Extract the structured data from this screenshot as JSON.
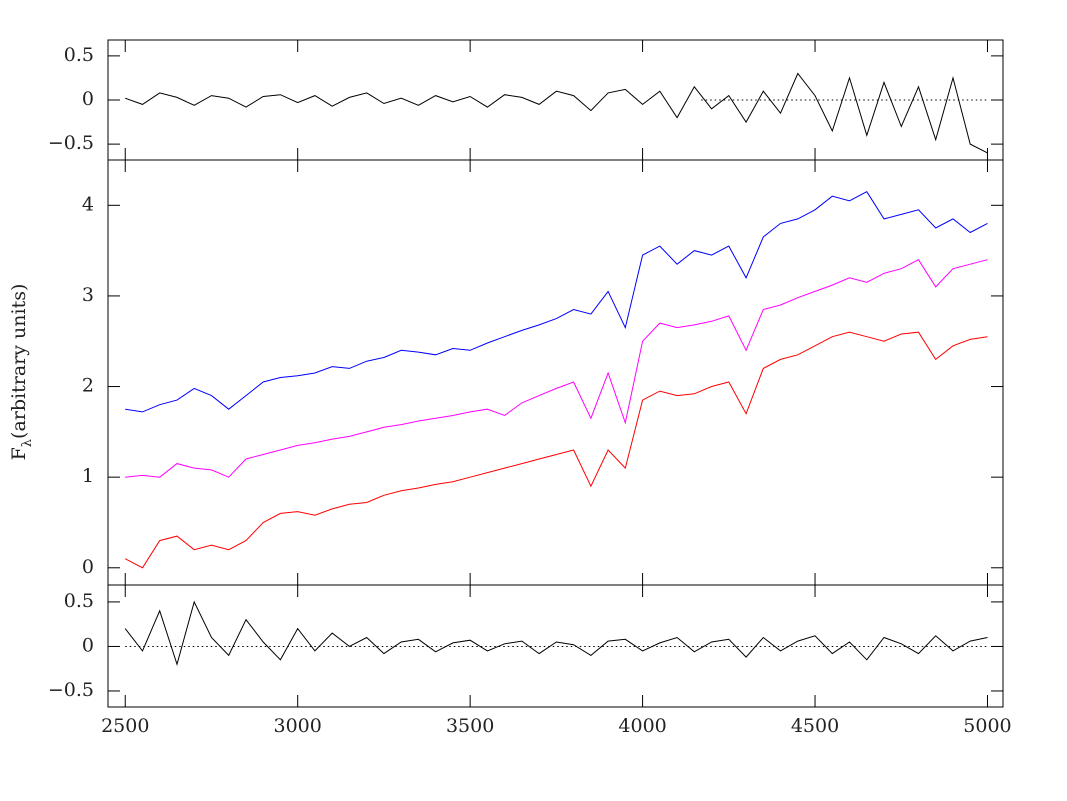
{
  "chart_data": [
    {
      "type": "line",
      "xlim": [
        2450,
        5045
      ],
      "ylim": [
        -0.68,
        0.68
      ],
      "yticks": [
        {
          "value": -0.5,
          "label": "−0.5"
        },
        0,
        0.5
      ],
      "hline": {
        "y": 0,
        "x": [
          4170,
          5000
        ]
      },
      "x": [
        2500,
        2550,
        2600,
        2650,
        2700,
        2750,
        2800,
        2850,
        2900,
        2950,
        3000,
        3050,
        3100,
        3150,
        3200,
        3250,
        3300,
        3350,
        3400,
        3450,
        3500,
        3550,
        3600,
        3650,
        3700,
        3750,
        3800,
        3850,
        3900,
        3950,
        4000,
        4050,
        4100,
        4150,
        4200,
        4250,
        4300,
        4350,
        4400,
        4450,
        4500,
        4550,
        4600,
        4650,
        4700,
        4750,
        4800,
        4850,
        4900,
        4950,
        5000
      ],
      "series": [
        {
          "color": "#000000",
          "values": [
            0.02,
            -0.05,
            0.08,
            0.03,
            -0.06,
            0.05,
            0.02,
            -0.08,
            0.04,
            0.06,
            -0.03,
            0.05,
            -0.07,
            0.03,
            0.08,
            -0.04,
            0.02,
            -0.06,
            0.05,
            -0.02,
            0.04,
            -0.08,
            0.06,
            0.03,
            -0.05,
            0.1,
            0.05,
            -0.12,
            0.08,
            0.12,
            -0.05,
            0.1,
            -0.2,
            0.15,
            -0.1,
            0.05,
            -0.25,
            0.1,
            -0.15,
            0.3,
            0.05,
            -0.35,
            0.25,
            -0.4,
            0.2,
            -0.3,
            0.15,
            -0.45,
            0.25,
            -0.5,
            -0.6
          ]
        }
      ]
    },
    {
      "type": "line",
      "xlim": [
        2450,
        5045
      ],
      "ylim": [
        -0.19,
        4.5
      ],
      "yticks": [
        0,
        1,
        2,
        3,
        4
      ],
      "ylabel": {
        "base": "F",
        "sub": "λ",
        "rest": "(arbitrary units)"
      },
      "x": [
        2500,
        2550,
        2600,
        2650,
        2700,
        2750,
        2800,
        2850,
        2900,
        2950,
        3000,
        3050,
        3100,
        3150,
        3200,
        3250,
        3300,
        3350,
        3400,
        3450,
        3500,
        3550,
        3600,
        3650,
        3700,
        3750,
        3800,
        3850,
        3900,
        3950,
        4000,
        4050,
        4100,
        4150,
        4200,
        4250,
        4300,
        4350,
        4400,
        4450,
        4500,
        4550,
        4600,
        4650,
        4700,
        4750,
        4800,
        4850,
        4900,
        4950,
        5000
      ],
      "series": [
        {
          "color": "#0000ff",
          "values": [
            1.75,
            1.72,
            1.8,
            1.85,
            1.98,
            1.9,
            1.75,
            1.9,
            2.05,
            2.1,
            2.12,
            2.15,
            2.22,
            2.2,
            2.28,
            2.32,
            2.4,
            2.38,
            2.35,
            2.42,
            2.4,
            2.48,
            2.55,
            2.62,
            2.68,
            2.75,
            2.85,
            2.8,
            3.05,
            2.65,
            3.45,
            3.55,
            3.35,
            3.5,
            3.45,
            3.55,
            3.2,
            3.65,
            3.8,
            3.85,
            3.95,
            4.1,
            4.05,
            4.15,
            3.85,
            3.9,
            3.95,
            3.75,
            3.85,
            3.7,
            3.8
          ]
        },
        {
          "color": "#ff00ff",
          "values": [
            1.0,
            1.02,
            1.0,
            1.15,
            1.1,
            1.08,
            1.0,
            1.2,
            1.25,
            1.3,
            1.35,
            1.38,
            1.42,
            1.45,
            1.5,
            1.55,
            1.58,
            1.62,
            1.65,
            1.68,
            1.72,
            1.75,
            1.68,
            1.82,
            1.9,
            1.98,
            2.05,
            1.65,
            2.15,
            1.6,
            2.5,
            2.7,
            2.65,
            2.68,
            2.72,
            2.78,
            2.4,
            2.85,
            2.9,
            2.98,
            3.05,
            3.12,
            3.2,
            3.15,
            3.25,
            3.3,
            3.4,
            3.1,
            3.3,
            3.35,
            3.4
          ]
        },
        {
          "color": "#ff0000",
          "values": [
            0.1,
            0.0,
            0.3,
            0.35,
            0.2,
            0.25,
            0.2,
            0.3,
            0.5,
            0.6,
            0.62,
            0.58,
            0.65,
            0.7,
            0.72,
            0.8,
            0.85,
            0.88,
            0.92,
            0.95,
            1.0,
            1.05,
            1.1,
            1.15,
            1.2,
            1.25,
            1.3,
            0.9,
            1.3,
            1.1,
            1.85,
            1.95,
            1.9,
            1.92,
            2.0,
            2.05,
            1.7,
            2.2,
            2.3,
            2.35,
            2.45,
            2.55,
            2.6,
            2.55,
            2.5,
            2.58,
            2.6,
            2.3,
            2.45,
            2.52,
            2.55
          ]
        }
      ]
    },
    {
      "type": "line",
      "xlim": [
        2450,
        5045
      ],
      "ylim": [
        -0.68,
        0.69
      ],
      "yticks": [
        {
          "value": -0.5,
          "label": "−0.5"
        },
        0,
        0.5
      ],
      "xticks": [
        2500,
        3000,
        3500,
        4000,
        4500,
        5000
      ],
      "hline": {
        "y": 0,
        "x": [
          2500,
          5000
        ]
      },
      "x": [
        2500,
        2550,
        2600,
        2650,
        2700,
        2750,
        2800,
        2850,
        2900,
        2950,
        3000,
        3050,
        3100,
        3150,
        3200,
        3250,
        3300,
        3350,
        3400,
        3450,
        3500,
        3550,
        3600,
        3650,
        3700,
        3750,
        3800,
        3850,
        3900,
        3950,
        4000,
        4050,
        4100,
        4150,
        4200,
        4250,
        4300,
        4350,
        4400,
        4450,
        4500,
        4550,
        4600,
        4650,
        4700,
        4750,
        4800,
        4850,
        4900,
        4950,
        5000
      ],
      "series": [
        {
          "color": "#000000",
          "values": [
            0.2,
            -0.05,
            0.4,
            -0.2,
            0.5,
            0.1,
            -0.1,
            0.3,
            0.05,
            -0.15,
            0.2,
            -0.05,
            0.15,
            0.0,
            0.1,
            -0.08,
            0.05,
            0.08,
            -0.06,
            0.04,
            0.07,
            -0.05,
            0.03,
            0.06,
            -0.08,
            0.05,
            0.02,
            -0.1,
            0.06,
            0.08,
            -0.05,
            0.04,
            0.1,
            -0.06,
            0.05,
            0.08,
            -0.12,
            0.1,
            -0.05,
            0.06,
            0.12,
            -0.08,
            0.05,
            -0.15,
            0.1,
            0.03,
            -0.08,
            0.12,
            -0.05,
            0.06,
            0.1
          ]
        }
      ]
    }
  ]
}
